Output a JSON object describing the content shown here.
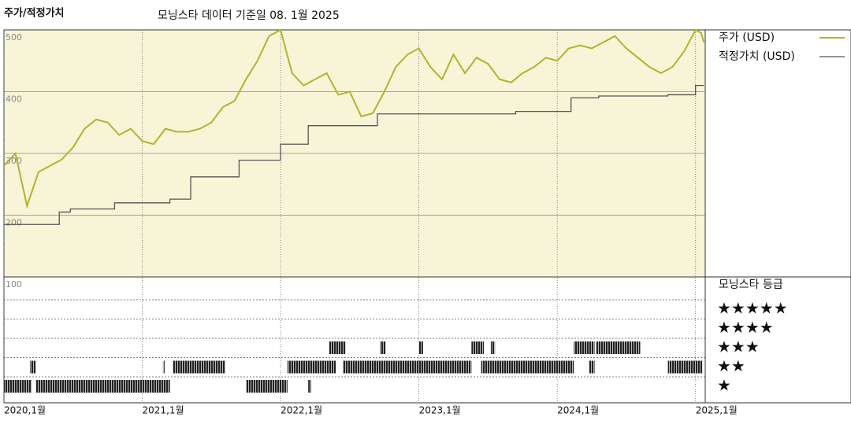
{
  "chart_data": {
    "type": "line",
    "title": "주가/적정가치",
    "subtitle": "모닝스타 데이터 기준일 08. 1월 2025",
    "xlim": [
      2020,
      2025.07
    ],
    "xticks": [
      {
        "value": 2020,
        "label": "2020,1월"
      },
      {
        "value": 2021,
        "label": "2021,1월"
      },
      {
        "value": 2022,
        "label": "2022,1월"
      },
      {
        "value": 2023,
        "label": "2023,1월"
      },
      {
        "value": 2024,
        "label": "2024,1월"
      },
      {
        "value": 2025,
        "label": "2025,1월"
      }
    ],
    "ylim": [
      100,
      500
    ],
    "yticks": [
      100,
      200,
      300,
      400,
      500
    ],
    "grid": true,
    "series": [
      {
        "name": "주가 (USD)",
        "color": "#b3b32b",
        "x": [
          2020.0,
          2020.083,
          2020.167,
          2020.25,
          2020.333,
          2020.417,
          2020.5,
          2020.583,
          2020.667,
          2020.75,
          2020.833,
          2020.917,
          2021.0,
          2021.083,
          2021.167,
          2021.25,
          2021.333,
          2021.417,
          2021.5,
          2021.583,
          2021.667,
          2021.75,
          2021.833,
          2021.917,
          2022.0,
          2022.083,
          2022.167,
          2022.25,
          2022.333,
          2022.417,
          2022.5,
          2022.583,
          2022.667,
          2022.75,
          2022.833,
          2022.917,
          2023.0,
          2023.083,
          2023.167,
          2023.25,
          2023.333,
          2023.417,
          2023.5,
          2023.583,
          2023.667,
          2023.75,
          2023.833,
          2023.917,
          2024.0,
          2024.083,
          2024.167,
          2024.25,
          2024.333,
          2024.417,
          2024.5,
          2024.583,
          2024.667,
          2024.75,
          2024.833,
          2024.917,
          2025.0,
          2025.04,
          2025.06
        ],
        "values": [
          280,
          300,
          215,
          270,
          280,
          290,
          310,
          340,
          355,
          350,
          330,
          340,
          320,
          315,
          340,
          335,
          335,
          340,
          350,
          375,
          385,
          420,
          450,
          490,
          500,
          430,
          410,
          420,
          430,
          395,
          400,
          360,
          365,
          400,
          440,
          460,
          470,
          440,
          420,
          460,
          430,
          455,
          445,
          420,
          415,
          430,
          440,
          455,
          450,
          470,
          475,
          470,
          480,
          490,
          470,
          455,
          440,
          430,
          440,
          465,
          500,
          495,
          480
        ]
      },
      {
        "name": "적정가치 (USD)",
        "color": "#555555",
        "step": true,
        "x": [
          2020.0,
          2020.4,
          2020.48,
          2020.8,
          2021.2,
          2021.35,
          2021.7,
          2022.0,
          2022.2,
          2022.7,
          2023.7,
          2024.1,
          2024.3,
          2024.8,
          2025.0,
          2025.06
        ],
        "values": [
          185,
          205,
          210,
          220,
          226,
          262,
          289,
          315,
          345,
          364,
          368,
          390,
          393,
          395,
          410,
          410
        ]
      }
    ],
    "rating_panel": {
      "title": "모닝스타 등급",
      "levels": [
        5,
        4,
        3,
        2,
        1
      ],
      "star_labels": [
        "★★★★★",
        "★★★★",
        "★★★",
        "★★",
        "★"
      ],
      "periods": {
        "start": [
          2020.0,
          2020.23,
          2021.75,
          2022.2,
          2020.19,
          2021.15,
          2021.22,
          2022.05,
          2022.45,
          2023.0,
          2023.45,
          2024.23,
          2024.8,
          2022.35,
          2022.72,
          2023.0,
          2023.38,
          2023.52,
          2024.12,
          2024.28
        ],
        "end": [
          2020.2,
          2021.2,
          2022.05,
          2022.22,
          2020.23,
          2021.16,
          2021.6,
          2022.4,
          2023.0,
          2023.38,
          2024.12,
          2024.27,
          2025.05,
          2022.47,
          2022.76,
          2023.03,
          2023.47,
          2023.55,
          2024.27,
          2024.6
        ],
        "stars": [
          1,
          1,
          1,
          1,
          2,
          2,
          2,
          2,
          2,
          2,
          2,
          2,
          2,
          3,
          3,
          3,
          3,
          3,
          3,
          3
        ]
      }
    }
  }
}
